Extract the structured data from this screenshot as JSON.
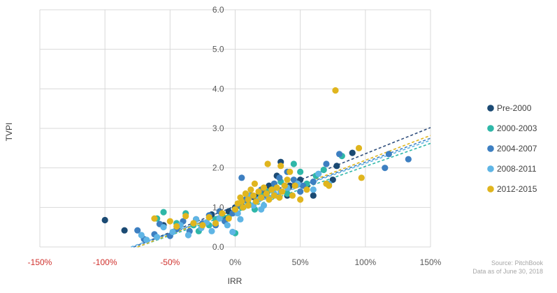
{
  "chart_data": {
    "type": "scatter",
    "xlabel": "IRR",
    "ylabel": "TVPI",
    "xlim": [
      -1.5,
      1.5
    ],
    "ylim": [
      0,
      6
    ],
    "x_ticks": [
      "-150%",
      "-100%",
      "-50%",
      "0%",
      "50%",
      "100%",
      "150%"
    ],
    "y_ticks": [
      "0.0",
      "1.0",
      "2.0",
      "3.0",
      "4.0",
      "5.0",
      "6.0"
    ],
    "grid": true,
    "legend_position": "right",
    "series": [
      {
        "name": "Pre-2000",
        "color": "#1b4a73",
        "trend_color": "#2e4d7b",
        "trendline": {
          "from": [
            -0.78,
            0.0
          ],
          "to": [
            1.5,
            3.02
          ]
        },
        "points": [
          [
            -1.0,
            0.68
          ],
          [
            -0.85,
            0.42
          ],
          [
            -0.55,
            0.55
          ],
          [
            -0.3,
            0.7
          ],
          [
            -0.18,
            0.82
          ],
          [
            -0.05,
            0.9
          ],
          [
            0.0,
            1.0
          ],
          [
            0.05,
            1.05
          ],
          [
            0.1,
            1.1
          ],
          [
            0.15,
            1.25
          ],
          [
            0.18,
            1.3
          ],
          [
            0.22,
            1.35
          ],
          [
            0.26,
            1.55
          ],
          [
            0.3,
            1.6
          ],
          [
            0.32,
            1.8
          ],
          [
            0.35,
            2.15
          ],
          [
            0.4,
            1.3
          ],
          [
            0.42,
            1.55
          ],
          [
            0.5,
            1.7
          ],
          [
            0.55,
            1.55
          ],
          [
            0.6,
            1.3
          ],
          [
            0.75,
            1.7
          ],
          [
            0.78,
            2.05
          ],
          [
            0.9,
            2.38
          ],
          [
            -0.08,
            0.7
          ],
          [
            0.08,
            1.2
          ],
          [
            0.2,
            1.4
          ],
          [
            0.28,
            1.45
          ]
        ]
      },
      {
        "name": "2000-2003",
        "color": "#2fb7a8",
        "trend_color": "#2fb7a8",
        "trendline": {
          "from": [
            -0.75,
            0.0
          ],
          "to": [
            1.5,
            2.62
          ]
        },
        "points": [
          [
            -0.6,
            0.72
          ],
          [
            -0.55,
            0.88
          ],
          [
            -0.45,
            0.6
          ],
          [
            -0.38,
            0.85
          ],
          [
            -0.32,
            0.55
          ],
          [
            -0.28,
            0.4
          ],
          [
            -0.2,
            0.55
          ],
          [
            -0.15,
            0.7
          ],
          [
            -0.1,
            0.8
          ],
          [
            -0.05,
            0.75
          ],
          [
            0.0,
            0.35
          ],
          [
            0.0,
            0.9
          ],
          [
            0.05,
            1.0
          ],
          [
            0.1,
            1.1
          ],
          [
            0.15,
            0.95
          ],
          [
            0.2,
            1.3
          ],
          [
            0.25,
            1.4
          ],
          [
            0.3,
            1.5
          ],
          [
            0.35,
            1.65
          ],
          [
            0.45,
            2.1
          ],
          [
            0.5,
            1.9
          ],
          [
            0.62,
            1.8
          ],
          [
            0.68,
            1.95
          ],
          [
            0.82,
            2.3
          ],
          [
            0.4,
            1.35
          ],
          [
            0.55,
            1.6
          ]
        ]
      },
      {
        "name": "2004-2007",
        "color": "#3d7fc1",
        "trend_color": "#3d7fc1",
        "trendline": {
          "from": [
            -0.78,
            0.0
          ],
          "to": [
            1.5,
            2.75
          ]
        },
        "points": [
          [
            -0.75,
            0.42
          ],
          [
            -0.7,
            0.2
          ],
          [
            -0.62,
            0.32
          ],
          [
            -0.58,
            0.58
          ],
          [
            -0.5,
            0.28
          ],
          [
            -0.45,
            0.45
          ],
          [
            -0.4,
            0.65
          ],
          [
            -0.35,
            0.4
          ],
          [
            -0.25,
            0.6
          ],
          [
            -0.2,
            0.8
          ],
          [
            -0.15,
            0.55
          ],
          [
            -0.12,
            0.9
          ],
          [
            -0.08,
            0.65
          ],
          [
            -0.02,
            0.85
          ],
          [
            0.02,
            1.05
          ],
          [
            0.05,
            1.75
          ],
          [
            0.08,
            1.2
          ],
          [
            0.12,
            1.3
          ],
          [
            0.16,
            1.15
          ],
          [
            0.2,
            1.45
          ],
          [
            0.24,
            1.3
          ],
          [
            0.3,
            1.6
          ],
          [
            0.34,
            1.75
          ],
          [
            0.38,
            1.55
          ],
          [
            0.4,
            1.9
          ],
          [
            0.45,
            1.7
          ],
          [
            0.52,
            1.55
          ],
          [
            0.6,
            1.65
          ],
          [
            0.7,
            2.1
          ],
          [
            0.8,
            2.35
          ],
          [
            1.15,
            2.0
          ],
          [
            1.18,
            2.35
          ],
          [
            1.33,
            2.22
          ],
          [
            0.5,
            1.4
          ]
        ]
      },
      {
        "name": "2008-2011",
        "color": "#5fb5e5",
        "trend_color": "#5fb5e5",
        "trendline": {
          "from": [
            -0.8,
            0.0
          ],
          "to": [
            1.5,
            2.7
          ]
        },
        "points": [
          [
            -0.72,
            0.3
          ],
          [
            -0.68,
            0.18
          ],
          [
            -0.6,
            0.25
          ],
          [
            -0.55,
            0.5
          ],
          [
            -0.48,
            0.38
          ],
          [
            -0.42,
            0.55
          ],
          [
            -0.36,
            0.3
          ],
          [
            -0.3,
            0.7
          ],
          [
            -0.26,
            0.48
          ],
          [
            -0.22,
            0.62
          ],
          [
            -0.18,
            0.4
          ],
          [
            -0.12,
            0.72
          ],
          [
            -0.06,
            0.55
          ],
          [
            -0.02,
            0.38
          ],
          [
            0.02,
            0.85
          ],
          [
            0.06,
            1.0
          ],
          [
            0.1,
            1.3
          ],
          [
            0.14,
            1.05
          ],
          [
            0.18,
            1.2
          ],
          [
            0.22,
            1.05
          ],
          [
            0.26,
            1.25
          ],
          [
            0.3,
            1.35
          ],
          [
            0.35,
            1.4
          ],
          [
            0.4,
            1.5
          ],
          [
            0.48,
            1.6
          ],
          [
            0.6,
            1.45
          ],
          [
            0.64,
            1.85
          ],
          [
            0.72,
            1.6
          ],
          [
            0.04,
            0.7
          ],
          [
            0.2,
            0.95
          ]
        ]
      },
      {
        "name": "2012-2015",
        "color": "#e0b51e",
        "trend_color": "#e0b51e",
        "trendline": {
          "from": [
            -0.75,
            0.0
          ],
          "to": [
            1.5,
            2.82
          ]
        },
        "points": [
          [
            -0.62,
            0.72
          ],
          [
            -0.5,
            0.65
          ],
          [
            -0.45,
            0.52
          ],
          [
            -0.38,
            0.78
          ],
          [
            -0.32,
            0.6
          ],
          [
            -0.25,
            0.55
          ],
          [
            -0.2,
            0.75
          ],
          [
            -0.15,
            0.6
          ],
          [
            -0.1,
            0.85
          ],
          [
            -0.05,
            0.72
          ],
          [
            0.0,
            0.95
          ],
          [
            0.02,
            1.1
          ],
          [
            0.04,
            1.25
          ],
          [
            0.06,
            1.0
          ],
          [
            0.08,
            1.35
          ],
          [
            0.1,
            1.2
          ],
          [
            0.12,
            1.45
          ],
          [
            0.14,
            1.3
          ],
          [
            0.16,
            1.15
          ],
          [
            0.18,
            1.4
          ],
          [
            0.2,
            1.25
          ],
          [
            0.22,
            1.5
          ],
          [
            0.24,
            1.35
          ],
          [
            0.26,
            1.2
          ],
          [
            0.28,
            1.45
          ],
          [
            0.3,
            1.3
          ],
          [
            0.32,
            1.5
          ],
          [
            0.34,
            1.25
          ],
          [
            0.36,
            1.4
          ],
          [
            0.38,
            1.55
          ],
          [
            0.4,
            1.7
          ],
          [
            0.44,
            1.3
          ],
          [
            0.46,
            1.55
          ],
          [
            0.5,
            1.2
          ],
          [
            0.25,
            2.1
          ],
          [
            0.35,
            2.05
          ],
          [
            0.42,
            1.9
          ],
          [
            0.55,
            1.45
          ],
          [
            0.7,
            1.6
          ],
          [
            0.72,
            1.55
          ],
          [
            0.77,
            3.96
          ],
          [
            0.95,
            2.5
          ],
          [
            0.97,
            1.75
          ],
          [
            0.15,
            1.6
          ],
          [
            0.05,
            1.15
          ],
          [
            0.1,
            1.05
          ]
        ]
      }
    ]
  },
  "source": {
    "line1": "Source: PitchBook",
    "line2": "Data as of June 30, 2018"
  }
}
